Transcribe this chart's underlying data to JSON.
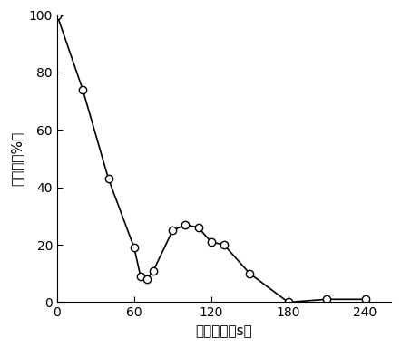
{
  "x": [
    0,
    20,
    40,
    60,
    65,
    70,
    75,
    90,
    100,
    110,
    120,
    130,
    150,
    180,
    210,
    240
  ],
  "y": [
    100,
    74,
    43,
    19,
    9,
    8,
    11,
    25,
    27,
    26,
    21,
    20,
    10,
    0,
    1,
    1
  ],
  "xlabel": "处理时间（s）",
  "ylabel": "存活率（%）",
  "xlim": [
    0,
    260
  ],
  "ylim": [
    0,
    100
  ],
  "xticks": [
    0,
    60,
    120,
    180,
    240
  ],
  "yticks": [
    0,
    20,
    40,
    60,
    80,
    100
  ],
  "line_color": "#000000",
  "marker": "o",
  "marker_facecolor": "white",
  "marker_edgecolor": "#000000",
  "marker_size": 6,
  "linewidth": 1.2,
  "background_color": "#ffffff"
}
